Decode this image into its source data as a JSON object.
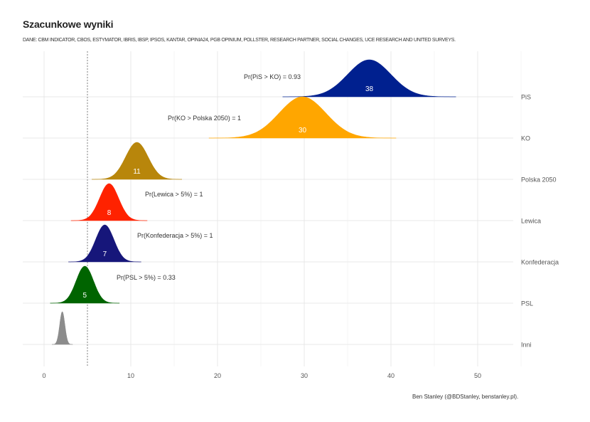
{
  "title": "Szacunkowe wyniki",
  "subtitle": "DANE: CBM INDICATOR, CBOS, ESTYMATOR, IBRIS, IBSP, IPSOS, KANTAR, OPINIA24, PGB OPINIUM, POLLSTER, RESEARCH PARTNER, SOCIAL CHANGES, UCE RESEARCH AND UNITED SURVEYS.",
  "caption": "Ben Stanley (@BDStanley, benstanley.pl).",
  "chart_data": {
    "type": "ridgeline",
    "title": "Szacunkowe wyniki",
    "xlim": [
      -2.5,
      55
    ],
    "x_ticks": [
      0,
      10,
      20,
      30,
      40,
      50
    ],
    "threshold_line": 5,
    "grid": true,
    "series": [
      {
        "name": "PiS",
        "mean": 37.5,
        "sd": 2.5,
        "label": "38",
        "color": "#00208f"
      },
      {
        "name": "KO",
        "mean": 29.8,
        "sd": 2.7,
        "label": "30",
        "color": "#ffa600"
      },
      {
        "name": "Polska 2050",
        "mean": 10.7,
        "sd": 1.3,
        "label": "11",
        "color": "#b8860b"
      },
      {
        "name": "Lewica",
        "mean": 7.5,
        "sd": 1.1,
        "label": "8",
        "color": "#ff2200"
      },
      {
        "name": "Konfederacja",
        "mean": 7.0,
        "sd": 1.05,
        "label": "7",
        "color": "#16167a"
      },
      {
        "name": "PSL",
        "mean": 4.7,
        "sd": 1.0,
        "label": "5",
        "color": "#006400"
      },
      {
        "name": "Inni",
        "mean": 2.1,
        "sd": 0.3,
        "label": "",
        "color": "#8c8c8c"
      }
    ],
    "annotations": [
      {
        "text": "Pr(PiS > KO) = 0.93",
        "series": "PiS"
      },
      {
        "text": "Pr(KO > Polska 2050) = 1",
        "series": "KO"
      },
      {
        "text": "Pr(Lewica > 5%) = 1",
        "series": "Lewica"
      },
      {
        "text": "Pr(Konfederacja > 5%) = 1",
        "series": "Konfederacja"
      },
      {
        "text": "Pr(PSL > 5%) = 0.33",
        "series": "PSL"
      }
    ]
  }
}
